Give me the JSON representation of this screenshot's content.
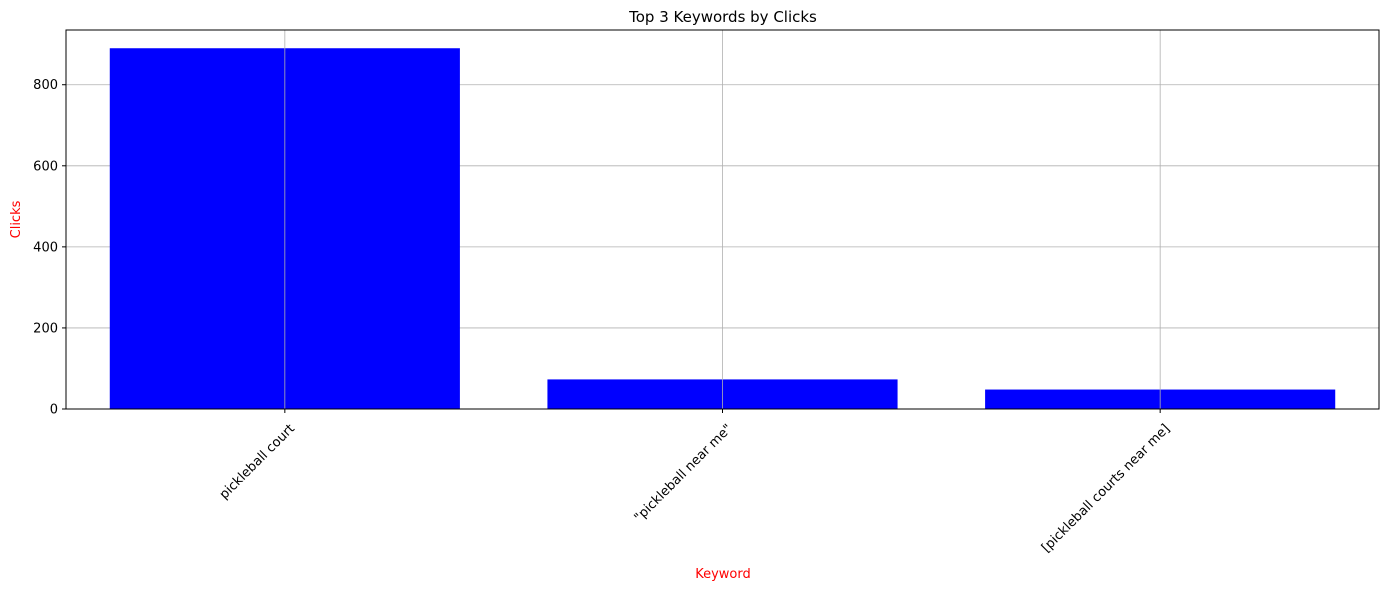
{
  "chart_data": {
    "type": "bar",
    "title": "Top 3 Keywords by Clicks",
    "xlabel": "Keyword",
    "ylabel": "Clicks",
    "categories": [
      "pickleball court",
      "\"pickleball near me\"",
      "[pickleball courts near me]"
    ],
    "values": [
      890,
      73,
      48
    ],
    "ylim": [
      0,
      935
    ],
    "yticks": [
      0,
      200,
      400,
      600,
      800
    ],
    "ytick_labels": [
      "0",
      "200",
      "400",
      "600",
      "800"
    ],
    "grid": true,
    "xtick_rotation_deg": 45,
    "colors": {
      "bar": "#0000ff",
      "axis_label": "#ff0000",
      "grid": "#b0b0b0",
      "axes": "#000000"
    }
  }
}
